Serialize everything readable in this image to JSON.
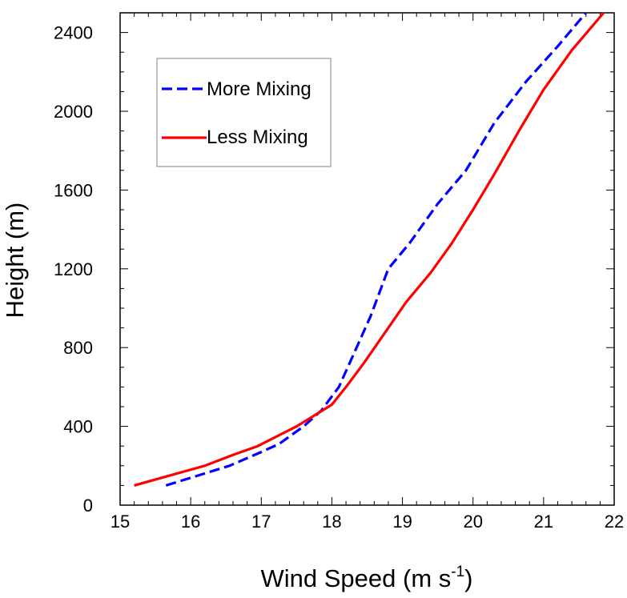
{
  "chart_data": {
    "type": "line",
    "title": "",
    "xlabel": "Wind Speed (m s",
    "xlabel_sup": "-1",
    "xlabel_close": ")",
    "ylabel": "Height (m)",
    "xlim": [
      15,
      22
    ],
    "ylim": [
      0,
      2500
    ],
    "x_ticks": [
      15,
      16,
      17,
      18,
      19,
      20,
      21,
      22
    ],
    "x_tick_labels": [
      "15",
      "16",
      "17",
      "18",
      "19",
      "20",
      "21",
      "22"
    ],
    "y_ticks": [
      0,
      400,
      800,
      1200,
      1600,
      2000,
      2400
    ],
    "y_tick_labels": [
      "0",
      "400",
      "800",
      "1200",
      "1600",
      "2000",
      "2400"
    ],
    "grid": false,
    "legend_position": "top-left",
    "series": [
      {
        "name": "More Mixing",
        "color": "#0000ff",
        "dash": "dashed",
        "x": [
          15.65,
          16.1,
          16.55,
          17.0,
          17.25,
          17.6,
          17.85,
          18.1,
          18.3,
          18.55,
          18.8,
          19.1,
          19.5,
          19.9,
          20.3,
          20.75,
          21.2,
          21.6
        ],
        "y": [
          100,
          150,
          200,
          270,
          310,
          400,
          480,
          600,
          760,
          960,
          1200,
          1330,
          1530,
          1700,
          1940,
          2150,
          2330,
          2500
        ]
      },
      {
        "name": "Less Mixing",
        "color": "#ff0000",
        "dash": "solid",
        "x": [
          15.2,
          15.7,
          16.2,
          16.6,
          16.95,
          17.5,
          18.0,
          18.2,
          18.45,
          18.8,
          19.05,
          19.4,
          19.7,
          20.0,
          20.3,
          20.65,
          21.0,
          21.4,
          21.85
        ],
        "y": [
          100,
          150,
          200,
          255,
          300,
          400,
          510,
          600,
          720,
          900,
          1030,
          1180,
          1330,
          1500,
          1680,
          1900,
          2110,
          2310,
          2500
        ]
      }
    ]
  }
}
